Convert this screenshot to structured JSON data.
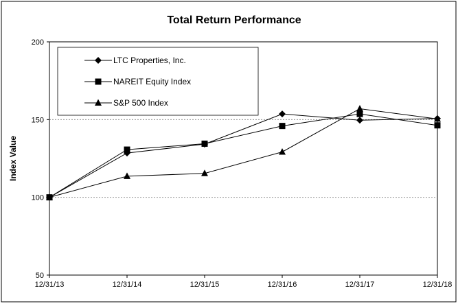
{
  "chart_data": {
    "type": "line",
    "title": "Total Return Performance",
    "xlabel": "",
    "ylabel": "Index Value",
    "categories": [
      "12/31/13",
      "12/31/14",
      "12/31/15",
      "12/31/16",
      "12/31/17",
      "12/31/18"
    ],
    "ylim": [
      50,
      200
    ],
    "yticks": [
      50,
      100,
      150,
      200
    ],
    "grid": "dashed horizontal at 100 and 150",
    "legend_position": "top-left",
    "series": [
      {
        "name": "LTC Properties, Inc.",
        "marker": "diamond",
        "values": [
          100,
          128.5,
          134.2,
          153.6,
          149.6,
          150.7
        ]
      },
      {
        "name": "NAREIT Equity Index",
        "marker": "square",
        "values": [
          100,
          130.7,
          134.5,
          145.9,
          153.6,
          146.3
        ]
      },
      {
        "name": "S&P 500 Index",
        "marker": "triangle",
        "values": [
          100,
          113.6,
          115.4,
          129.2,
          157.0,
          150.4
        ]
      }
    ],
    "colors": {
      "line": "#000000",
      "grid": "#808080"
    }
  }
}
